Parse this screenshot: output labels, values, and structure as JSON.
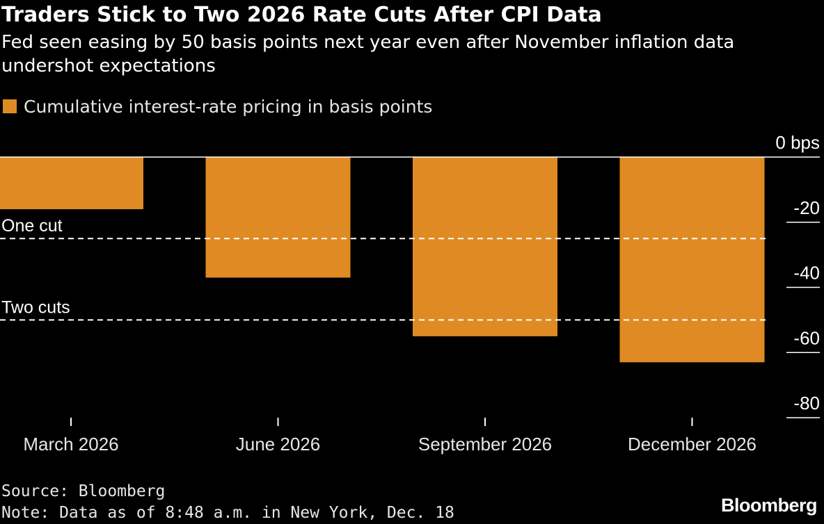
{
  "header": {
    "title": "Traders Stick to Two 2026 Rate Cuts After CPI Data",
    "subtitle": "Fed seen easing by 50 basis points next year even after November inflation data undershot expectations"
  },
  "legend": {
    "label": "Cumulative interest-rate pricing in basis points",
    "color": "#e08a24"
  },
  "footer": {
    "source": "Source: Bloomberg",
    "note": "Note: Data as of 8:48 a.m. in New York, Dec. 18",
    "brand": "Bloomberg"
  },
  "colors": {
    "bar": "#e08a24",
    "background": "#000000",
    "text": "#ffffff",
    "reference_line": "#ffffff"
  },
  "chart_data": {
    "type": "bar",
    "title": "Traders Stick to Two 2026 Rate Cuts After CPI Data",
    "subtitle": "Fed seen easing by 50 basis points next year even after November inflation data undershot expectations",
    "categories": [
      "March 2026",
      "June 2026",
      "September 2026",
      "December 2026"
    ],
    "series": [
      {
        "name": "Cumulative interest-rate pricing in basis points",
        "values": [
          -16,
          -37,
          -55,
          -63
        ]
      }
    ],
    "ylim": [
      -80,
      0
    ],
    "yticks": [
      0,
      -20,
      -40,
      -60,
      -80
    ],
    "ytick_labels": [
      "0 bps",
      "-20",
      "-40",
      "-60",
      "-80"
    ],
    "y_axis_side": "right",
    "grid": false,
    "legend_position": "top-left",
    "reference_lines": [
      {
        "label": "One cut",
        "value": -25,
        "style": "dashed"
      },
      {
        "label": "Two cuts",
        "value": -50,
        "style": "dashed"
      }
    ]
  }
}
